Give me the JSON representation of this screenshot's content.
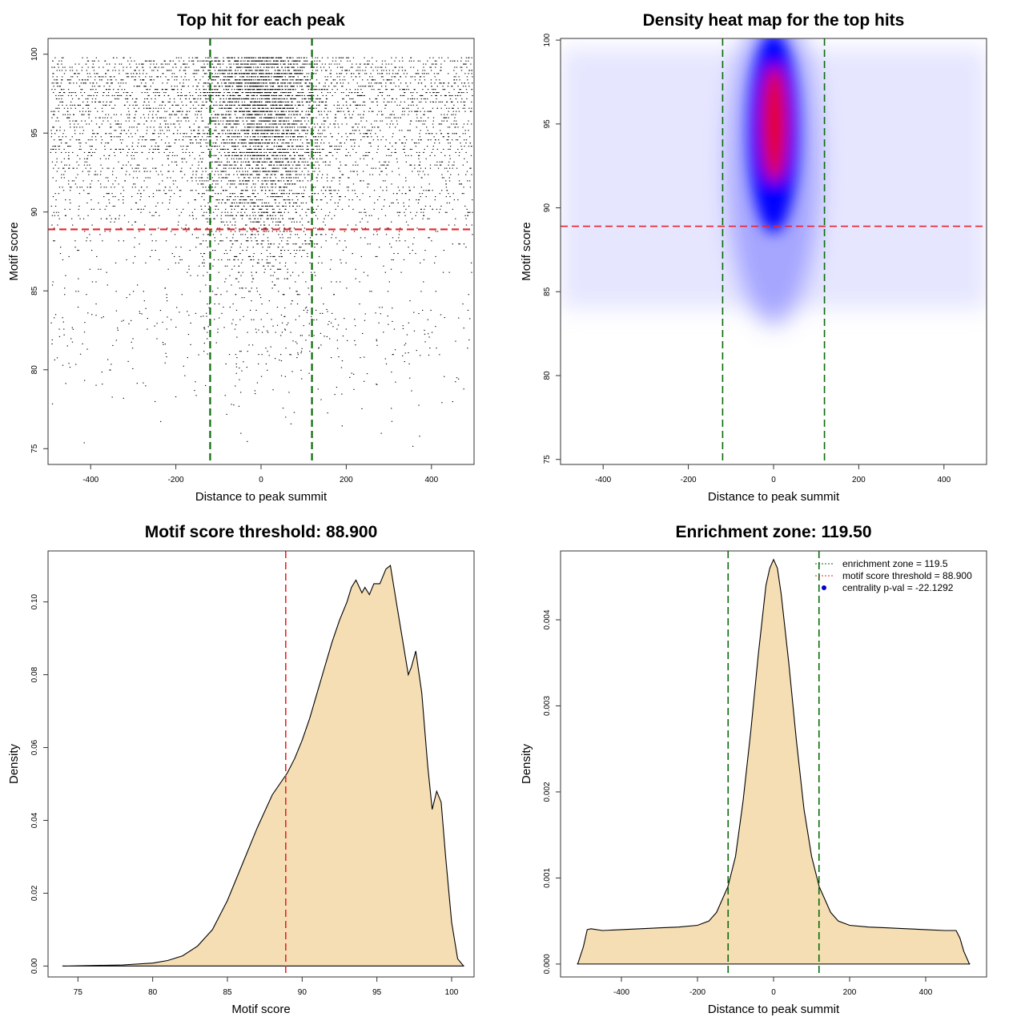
{
  "chart_data": [
    {
      "id": "scatter",
      "type": "scatter",
      "title": "Top hit for each peak",
      "xlabel": "Distance to peak summit",
      "ylabel": "Motif score",
      "xlim": [
        -500,
        500
      ],
      "ylim": [
        74,
        101
      ],
      "xticks": [
        -400,
        -200,
        0,
        200,
        400
      ],
      "yticks": [
        75,
        80,
        85,
        90,
        95,
        100
      ],
      "hline": 88.9,
      "vlines": [
        -119.5,
        119.5
      ],
      "point_color": "#000000",
      "hline_color": "#e8232b",
      "vline_color": "#0a6b0a"
    },
    {
      "id": "heatmap",
      "type": "heatmap",
      "title": "Density heat map for the top hits",
      "xlabel": "Distance to peak summit",
      "ylabel": "Motif score",
      "xlim": [
        -500,
        500
      ],
      "ylim": [
        74.7,
        100.1
      ],
      "xticks": [
        -400,
        -200,
        0,
        200,
        400
      ],
      "yticks": [
        75,
        80,
        85,
        90,
        95,
        100
      ],
      "hline": 88.9,
      "vlines": [
        -119.5,
        119.5
      ],
      "colors": [
        "#ffffff",
        "#0000ff",
        "#ff0000"
      ],
      "hline_color": "#e8232b",
      "vline_color": "#0a6b0a"
    },
    {
      "id": "scoreDensity",
      "type": "area",
      "title": "Motif score threshold: 88.900",
      "xlabel": "Motif score",
      "ylabel": "Density",
      "xlim": [
        73,
        101.5
      ],
      "ylim": [
        -0.003,
        0.114
      ],
      "xticks": [
        75,
        80,
        85,
        90,
        95,
        100
      ],
      "yticks": [
        0.0,
        0.02,
        0.04,
        0.06,
        0.08,
        0.1
      ],
      "ytick_labels": [
        "0.00",
        "0.02",
        "0.04",
        "0.06",
        "0.08",
        "0.10"
      ],
      "x": [
        74,
        78,
        80,
        81,
        82,
        83,
        84,
        85,
        86,
        87,
        88,
        89,
        89.5,
        90,
        90.5,
        91,
        91.5,
        92,
        92.5,
        93,
        93.3,
        93.6,
        94,
        94.2,
        94.5,
        94.8,
        95.2,
        95.6,
        95.9,
        96.3,
        96.7,
        97.1,
        97.3,
        97.6,
        98,
        98.4,
        98.7,
        99,
        99.3,
        99.6,
        100,
        100.4,
        100.8
      ],
      "y": [
        0.0,
        0.0003,
        0.0008,
        0.0015,
        0.0028,
        0.0055,
        0.01,
        0.018,
        0.028,
        0.038,
        0.047,
        0.053,
        0.057,
        0.062,
        0.068,
        0.075,
        0.082,
        0.089,
        0.095,
        0.1,
        0.104,
        0.106,
        0.1025,
        0.104,
        0.102,
        0.105,
        0.105,
        0.109,
        0.11,
        0.1,
        0.09,
        0.08,
        0.082,
        0.0865,
        0.075,
        0.055,
        0.043,
        0.048,
        0.045,
        0.03,
        0.012,
        0.002,
        0.0
      ]
    },
    {
      "id": "distDensity",
      "type": "area",
      "title": "Enrichment zone: 119.50",
      "xlabel": "Distance to peak summit",
      "ylabel": "Density",
      "xlim": [
        -560,
        560
      ],
      "ylim": [
        -0.00015,
        0.0048
      ],
      "xticks": [
        -400,
        -200,
        0,
        200,
        400
      ],
      "yticks": [
        0.0,
        0.001,
        0.002,
        0.003,
        0.004
      ],
      "ytick_labels": [
        "0.000",
        "0.001",
        "0.002",
        "0.003",
        "0.004"
      ],
      "vlines": [
        -119.5,
        119.5
      ],
      "vline_color": "#0a6b0a",
      "x": [
        -515,
        -500,
        -490,
        -480,
        -450,
        -400,
        -350,
        -300,
        -250,
        -200,
        -170,
        -150,
        -120,
        -100,
        -80,
        -60,
        -40,
        -20,
        -10,
        0,
        10,
        20,
        40,
        60,
        80,
        100,
        120,
        150,
        170,
        200,
        250,
        300,
        350,
        400,
        450,
        480,
        490,
        500,
        515
      ],
      "y": [
        0.0,
        0.0002,
        0.0004,
        0.00041,
        0.00039,
        0.0004,
        0.00041,
        0.00042,
        0.00043,
        0.00045,
        0.0005,
        0.0006,
        0.0009,
        0.00125,
        0.0019,
        0.0027,
        0.0036,
        0.0044,
        0.0046,
        0.0047,
        0.0046,
        0.0043,
        0.0035,
        0.0026,
        0.0018,
        0.00125,
        0.0009,
        0.0006,
        0.0005,
        0.00045,
        0.00043,
        0.00042,
        0.00041,
        0.0004,
        0.00039,
        0.00039,
        0.0003,
        0.00015,
        0.0
      ],
      "fill": "#f5deb3",
      "legend": {
        "placement": "top-right",
        "entries": [
          {
            "label": "enrichment zone = 119.5",
            "style": "dotted-line",
            "color": "#0a6b0a"
          },
          {
            "label": "motif score threshold = 88.900",
            "style": "dotted-line",
            "color": "#e8232b"
          },
          {
            "label": "centrality p-val = -22.1292",
            "style": "point",
            "color": "#0000cc"
          }
        ]
      }
    }
  ],
  "fill_color": "#f5deb3",
  "threshold_line_color": "#e8232b"
}
